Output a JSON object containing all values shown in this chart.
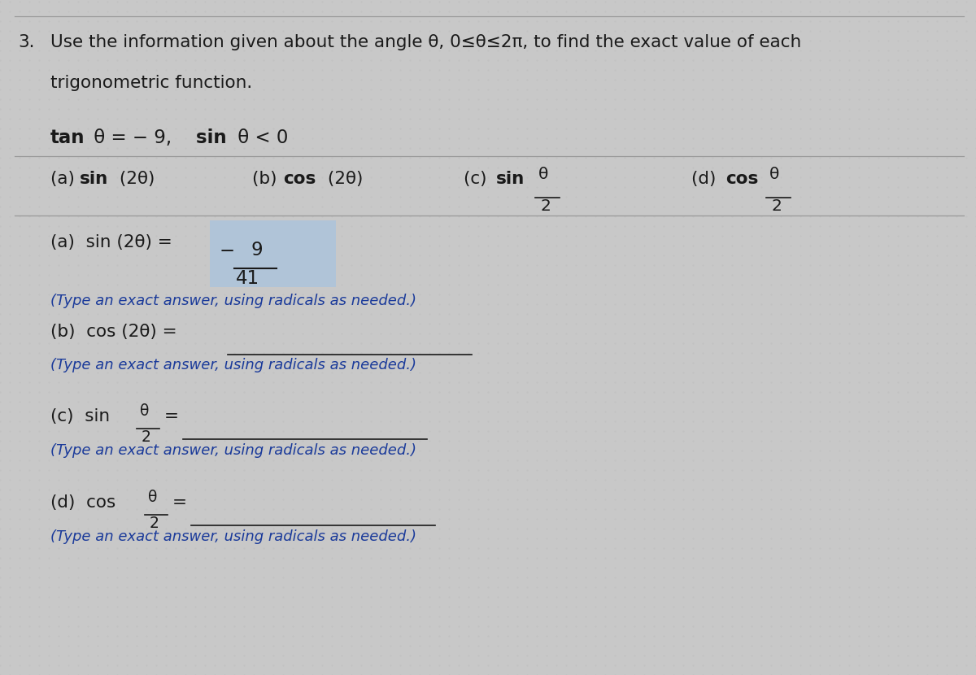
{
  "bg_color": "#c8c8c8",
  "highlight_color": "#b0c4d8",
  "text_color": "#1a1a1a",
  "blue_color": "#1a3a9a",
  "figsize": [
    12.0,
    8.3
  ],
  "dpi": 100,
  "title_num": "3.",
  "title_text": "Use the information given about the angle θ, 0≤θ≤2π, to find the exact value of each",
  "title_text2": "trigonometric function.",
  "given_line": "tan θ = − 9,  sin θ < 0",
  "type_exact": "(Type an exact answer, using radicals as needed.)"
}
